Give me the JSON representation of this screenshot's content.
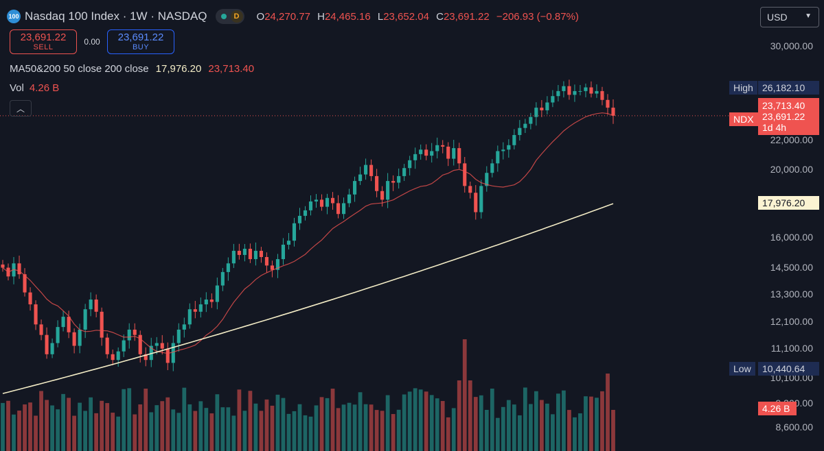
{
  "header": {
    "logo_text": "100",
    "title": "Nasdaq 100 Index · 1W · NASDAQ",
    "delayed_badge": "D",
    "ohlc": {
      "o_label": "O",
      "o_value": "24,270.77",
      "h_label": "H",
      "h_value": "24,465.16",
      "l_label": "L",
      "l_value": "23,652.04",
      "c_label": "C",
      "c_value": "23,691.22",
      "change": "−206.93 (−0.87%)"
    }
  },
  "trade": {
    "sell_price": "23,691.22",
    "sell_label": "SELL",
    "spread": "0.00",
    "buy_price": "23,691.22",
    "buy_label": "BUY"
  },
  "indicator": {
    "name": "MA50&200 50 close 200 close",
    "ma200_value": "17,976.20",
    "ma50_value": "23,713.40"
  },
  "volume": {
    "label": "Vol",
    "value": "4.26 B"
  },
  "currency": "USD",
  "price_axis": {
    "ticks": [
      "30,000.00",
      "22,000.00",
      "20,000.00",
      "16,000.00",
      "14,500.00",
      "13,300.00",
      "12,100.00",
      "11,100.00",
      "10,100.00",
      "9,300.00",
      "8,600.00"
    ]
  },
  "labels": {
    "high_tag": "High",
    "high_value": "26,182.10",
    "low_tag": "Low",
    "low_value": "10,440.64",
    "ndx_tag": "NDX",
    "ma50_value": "23,713.40",
    "last_price": "23,691.22",
    "countdown": "1d 4h",
    "ma200_value": "17,976.20",
    "vol_value": "4.26 B"
  },
  "colors": {
    "background": "#131722",
    "up": "#26a69a",
    "down": "#ef5350",
    "ma50": "#ef5350",
    "ma200": "#f3ecc6",
    "text": "#d1d4dc"
  },
  "chart_data": {
    "type": "candlestick",
    "title": "Nasdaq 100 Index · 1W · NASDAQ",
    "y_scale": "log",
    "ylim": [
      8300,
      31000
    ],
    "series": [
      {
        "name": "NDX weekly close",
        "values": [
          14700,
          14300,
          14900,
          14400,
          13600,
          13100,
          12300,
          11900,
          11200,
          11600,
          12200,
          12600,
          12000,
          11500,
          12100,
          12900,
          13300,
          12800,
          11800,
          11200,
          11000,
          11300,
          11700,
          12100,
          11900,
          11200,
          11000,
          11500,
          11600,
          11400,
          10900,
          11600,
          12100,
          12300,
          12900,
          12800,
          13100,
          13300,
          13200,
          13900,
          14500,
          14900,
          15500,
          15300,
          15600,
          15100,
          15500,
          15200,
          14800,
          14600,
          15100,
          15800,
          16000,
          16900,
          17300,
          17600,
          18100,
          18200,
          17800,
          18300,
          18000,
          17400,
          18000,
          18500,
          19300,
          19700,
          20300,
          19600,
          18700,
          18200,
          19300,
          19200,
          19600,
          20100,
          20600,
          21000,
          21300,
          20900,
          21200,
          21600,
          21500,
          20700,
          21400,
          20400,
          19000,
          18600,
          17500,
          19000,
          19800,
          20400,
          21200,
          21300,
          21600,
          22300,
          22800,
          23100,
          23600,
          24300,
          24100,
          24700,
          25200,
          25600,
          26000,
          25300,
          25600,
          25600,
          25900,
          25400,
          25600,
          24900,
          24300,
          23691
        ]
      },
      {
        "name": "MA 50",
        "last_value": 23713.4
      },
      {
        "name": "MA 200",
        "last_value": 17976.2
      }
    ],
    "high": 26182.1,
    "low": 10440.64,
    "last": 23691.22,
    "volume_last": "4.26 B"
  }
}
